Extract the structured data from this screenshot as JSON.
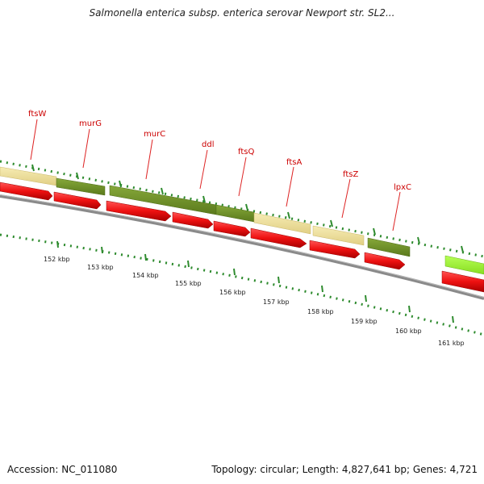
{
  "title": "Salmonella enterica subsp. enterica serovar Newport str. SL2...",
  "footer": {
    "accession": "Accession: NC_011080",
    "summary": "Topology: circular; Length: 4,827,641 bp; Genes: 4,721"
  },
  "colors": {
    "gene_label": "#cc0000",
    "tick": "#2e8b2e",
    "feature_dark_green": "#6b8e23",
    "feature_light_yellow": "#efe09a",
    "feature_light_green": "#99ee33",
    "cds_red": "#ee1111",
    "backbone": "#777777"
  },
  "gene_labels": [
    "ftsW",
    "murG",
    "murC",
    "ddl",
    "ftsQ",
    "ftsA",
    "ftsZ",
    "lpxC"
  ],
  "kbp_labels": [
    "152 kbp",
    "153 kbp",
    "154 kbp",
    "155 kbp",
    "156 kbp",
    "157 kbp",
    "158 kbp",
    "159 kbp",
    "160 kbp",
    "161 kbp"
  ]
}
